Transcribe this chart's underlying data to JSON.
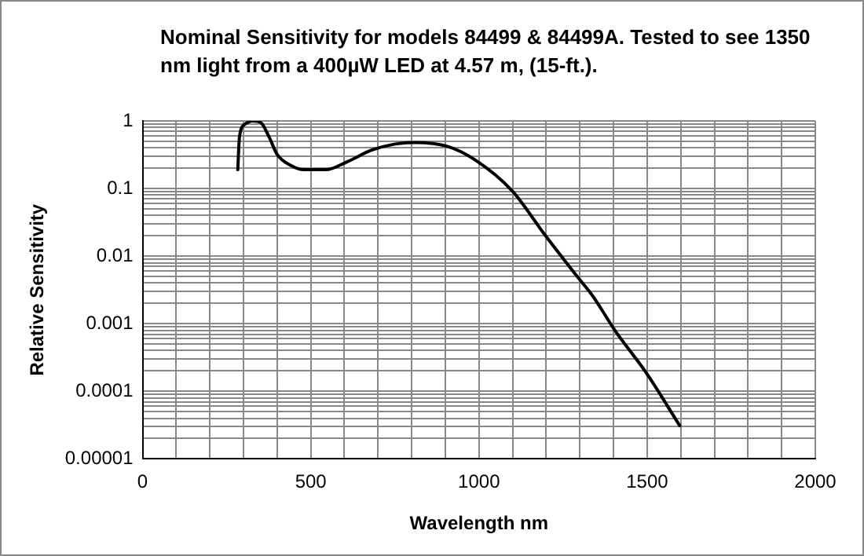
{
  "chart_data": {
    "type": "line",
    "title": "Nominal Sensitivity for models 84499 & 84499A. Tested to see 1350 nm light from a 400µW LED at 4.57 m, (15-ft.).",
    "xlabel": "Wavelength nm",
    "ylabel": "Relative Sensitivity",
    "x": [
      283,
      288,
      304,
      328,
      352,
      376,
      400,
      440,
      480,
      545,
      609,
      681,
      745,
      810,
      906,
      986,
      1099,
      1195,
      1292,
      1340,
      1404,
      1500,
      1597
    ],
    "series": [
      {
        "color": "#000000",
        "values": [
          0.19,
          0.58,
          0.89,
          1.0,
          0.94,
          0.58,
          0.32,
          0.22,
          0.19,
          0.19,
          0.25,
          0.37,
          0.45,
          0.48,
          0.42,
          0.27,
          0.092,
          0.021,
          0.005,
          0.0025,
          0.0008,
          0.00018,
          3.1e-05
        ]
      }
    ],
    "xlim": [
      0,
      2000
    ],
    "ylim": [
      1e-05,
      1
    ],
    "log": "y",
    "xticks": [
      0,
      {
        "value": 100,
        "label": null
      },
      {
        "value": 200,
        "label": null
      },
      {
        "value": 300,
        "label": null
      },
      {
        "value": 400,
        "label": null
      },
      500,
      {
        "value": 600,
        "label": null
      },
      {
        "value": 700,
        "label": null
      },
      {
        "value": 800,
        "label": null
      },
      {
        "value": 900,
        "label": null
      },
      1000,
      {
        "value": 1100,
        "label": null
      },
      {
        "value": 1200,
        "label": null
      },
      {
        "value": 1300,
        "label": null
      },
      {
        "value": 1400,
        "label": null
      },
      1500,
      {
        "value": 1600,
        "label": null
      },
      {
        "value": 1700,
        "label": null
      },
      {
        "value": 1800,
        "label": null
      },
      {
        "value": 1900,
        "label": null
      },
      2000
    ],
    "yticks": [
      {
        "value": 1e-05,
        "label": "0.00001"
      },
      {
        "value": 2e-05,
        "label": null
      },
      {
        "value": 3e-05,
        "label": null
      },
      {
        "value": 4e-05,
        "label": null
      },
      {
        "value": 5e-05,
        "label": null
      },
      {
        "value": 6e-05,
        "label": null
      },
      {
        "value": 7e-05,
        "label": null
      },
      {
        "value": 8e-05,
        "label": null
      },
      {
        "value": 9e-05,
        "label": null
      },
      0.0001,
      {
        "value": 0.0002,
        "label": null
      },
      {
        "value": 0.0003,
        "label": null
      },
      {
        "value": 0.0004,
        "label": null
      },
      {
        "value": 0.0005,
        "label": null
      },
      {
        "value": 0.0006,
        "label": null
      },
      {
        "value": 0.0007,
        "label": null
      },
      {
        "value": 0.0008,
        "label": null
      },
      {
        "value": 0.0009,
        "label": null
      },
      0.001,
      {
        "value": 0.002,
        "label": null
      },
      {
        "value": 0.003,
        "label": null
      },
      {
        "value": 0.004,
        "label": null
      },
      {
        "value": 0.005,
        "label": null
      },
      {
        "value": 0.006,
        "label": null
      },
      {
        "value": 0.007,
        "label": null
      },
      {
        "value": 0.008,
        "label": null
      },
      {
        "value": 0.009,
        "label": null
      },
      0.01,
      {
        "value": 0.02,
        "label": null
      },
      {
        "value": 0.03,
        "label": null
      },
      {
        "value": 0.04,
        "label": null
      },
      {
        "value": 0.05,
        "label": null
      },
      {
        "value": 0.06,
        "label": null
      },
      {
        "value": 0.07,
        "label": null
      },
      {
        "value": 0.08,
        "label": null
      },
      {
        "value": 0.09,
        "label": null
      },
      0.1,
      {
        "value": 0.2,
        "label": null
      },
      {
        "value": 0.3,
        "label": null
      },
      {
        "value": 0.4,
        "label": null
      },
      {
        "value": 0.5,
        "label": null
      },
      {
        "value": 0.6,
        "label": null
      },
      {
        "value": 0.7,
        "label": null
      },
      {
        "value": 0.8,
        "label": null
      },
      {
        "value": 0.9,
        "label": null
      },
      1
    ],
    "grid": true,
    "legend": false,
    "marker": "none",
    "line_style": "solid"
  }
}
